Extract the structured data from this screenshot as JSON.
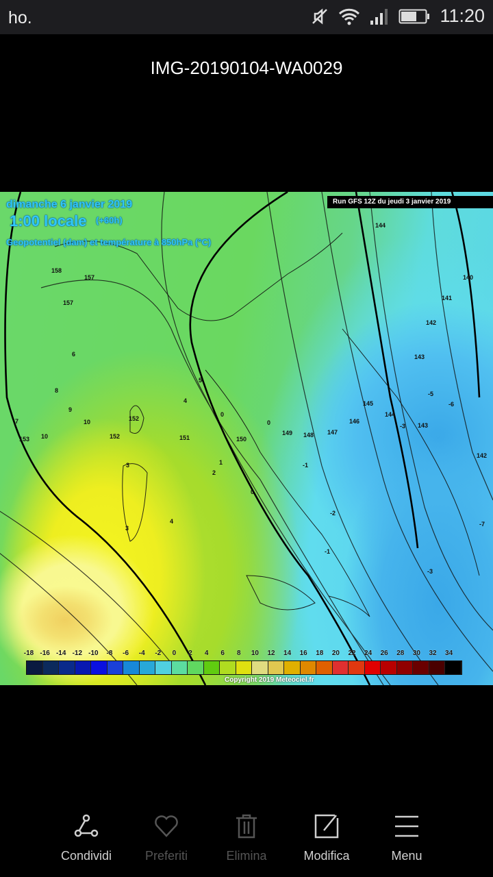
{
  "statusbar": {
    "carrier": "ho.",
    "time": "11:20",
    "battery_percent": 55,
    "icons": [
      "muted-icon",
      "wifi-icon",
      "signal-icon",
      "battery-icon"
    ]
  },
  "viewer": {
    "title": "IMG-20190104-WA0029"
  },
  "map": {
    "date": "dimanche 6 janvier 2019",
    "time": "1:00 locale",
    "lead": "(+60h)",
    "subtitle": "Geopotentiel (dam) et température à 850hPa (°C)",
    "run": "Run GFS 12Z du jeudi 3 janvier 2019",
    "copyright": "Copyright 2019 Meteociel.fr",
    "contour_labels": [
      "158",
      "157",
      "157",
      "153",
      "152",
      "152",
      "151",
      "150",
      "149",
      "148",
      "147",
      "146",
      "145",
      "144",
      "144",
      "143",
      "143",
      "142",
      "142",
      "141",
      "140",
      "10",
      "10",
      "9",
      "8",
      "7",
      "6",
      "5",
      "4",
      "4",
      "3",
      "3",
      "2",
      "1",
      "0",
      "0",
      "0",
      "-1",
      "-1",
      "-2",
      "-3",
      "-3",
      "-5",
      "-6",
      "-7"
    ],
    "legend_ticks": [
      "-18",
      "-16",
      "-14",
      "-12",
      "-10",
      "-8",
      "-6",
      "-4",
      "-2",
      "0",
      "2",
      "4",
      "6",
      "8",
      "10",
      "12",
      "14",
      "16",
      "18",
      "20",
      "22",
      "24",
      "26",
      "28",
      "30",
      "32",
      "34"
    ],
    "legend_colors": [
      "#0a1a40",
      "#0c2a5c",
      "#0a2a8a",
      "#0818b0",
      "#0a10e0",
      "#1a40d8",
      "#1888d8",
      "#28a8d8",
      "#50d0e0",
      "#5cdca0",
      "#60d860",
      "#60cc10",
      "#b0dc20",
      "#e0e010",
      "#e0dc80",
      "#e0c850",
      "#e0b000",
      "#e08800",
      "#e06000",
      "#e03030",
      "#e03810",
      "#e00000",
      "#b80000",
      "#900000",
      "#6a0000",
      "#4a0000",
      "#000000"
    ]
  },
  "toolbar": {
    "items": [
      {
        "label": "Condividi",
        "icon": "share-icon",
        "enabled": true
      },
      {
        "label": "Preferiti",
        "icon": "heart-icon",
        "enabled": false
      },
      {
        "label": "Elimina",
        "icon": "trash-icon",
        "enabled": false
      },
      {
        "label": "Modifica",
        "icon": "edit-icon",
        "enabled": true
      },
      {
        "label": "Menu",
        "icon": "menu-icon",
        "enabled": true
      }
    ]
  }
}
